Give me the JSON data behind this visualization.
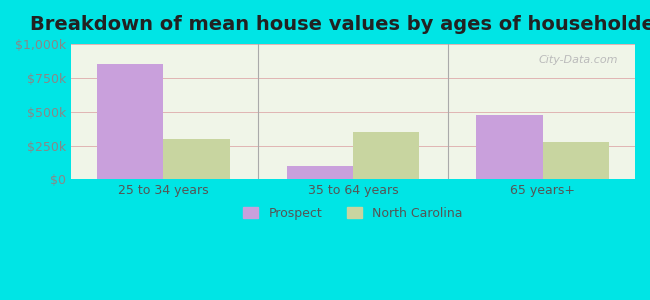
{
  "title": "Breakdown of mean house values by ages of householders",
  "categories": [
    "25 to 34 years",
    "35 to 64 years",
    "65 years+"
  ],
  "prospect_values": [
    850000,
    100000,
    475000
  ],
  "nc_values": [
    300000,
    350000,
    280000
  ],
  "prospect_color": "#c9a0dc",
  "nc_color": "#c8d5a0",
  "ylim": [
    0,
    1000000
  ],
  "yticks": [
    0,
    250000,
    500000,
    750000,
    1000000
  ],
  "ytick_labels": [
    "$0",
    "$250k",
    "$500k",
    "$750k",
    "$1,000k"
  ],
  "background_color": "#00e5e5",
  "plot_bg_top": "#f0f5e8",
  "plot_bg_bottom": "#e8f5e8",
  "legend_labels": [
    "Prospect",
    "North Carolina"
  ],
  "bar_width": 0.35,
  "title_fontsize": 14,
  "watermark": "City-Data.com"
}
